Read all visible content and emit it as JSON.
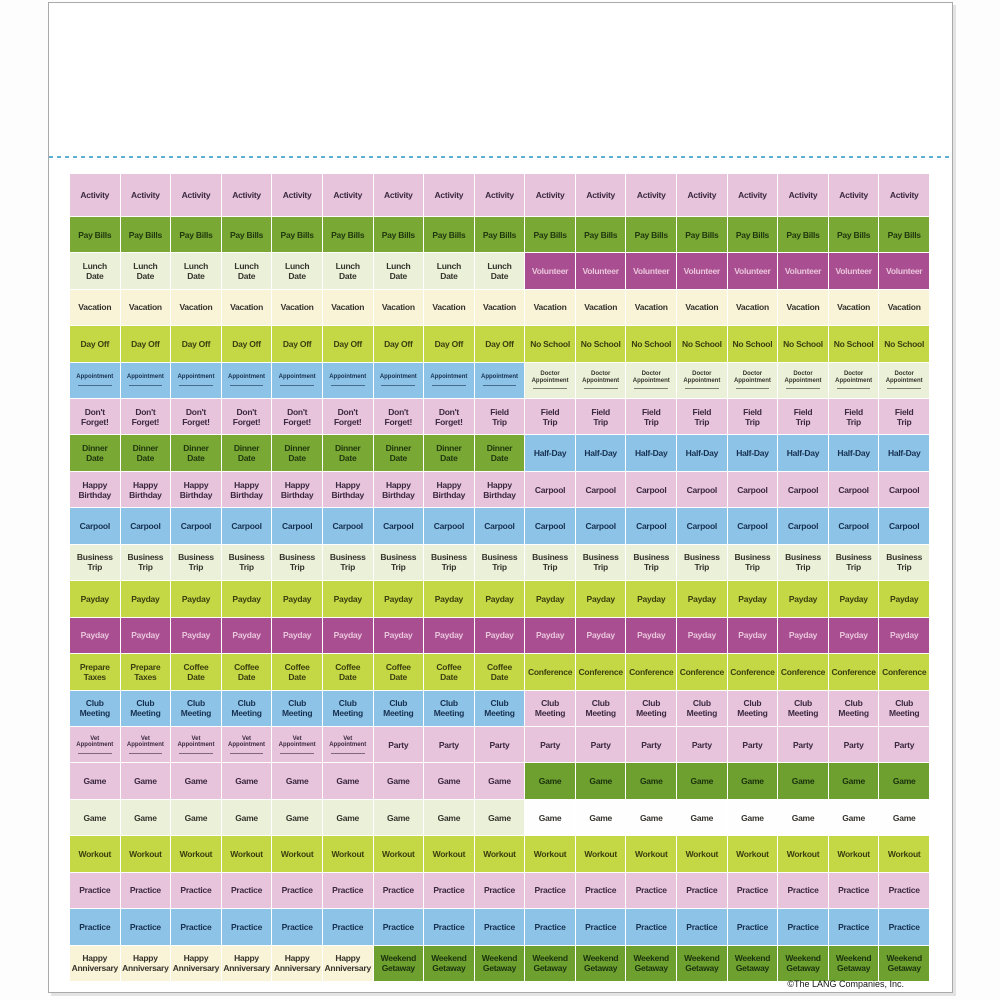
{
  "page": {
    "footer": "©The LANG Companies, Inc.",
    "perforation_color": "#5fafd6"
  },
  "palette": {
    "pink": {
      "bg": "#e7c3dc",
      "text": "#3a2940"
    },
    "green": {
      "bg": "#79a834",
      "text": "#20380e"
    },
    "dkgreen": {
      "bg": "#6da02e",
      "text": "#1b310e"
    },
    "palegreen": {
      "bg": "#ebf1d9",
      "text": "#35332c"
    },
    "cream": {
      "bg": "#f9f3d7",
      "text": "#35332c"
    },
    "chartreuse": {
      "bg": "#c4d845",
      "text": "#3a3f0e"
    },
    "blue": {
      "bg": "#8ec3e8",
      "text": "#16304f"
    },
    "magenta": {
      "bg": "#a94e90",
      "text": "#e9c6dc"
    },
    "white": {
      "bg": "#fefefe",
      "text": "#35332c"
    }
  },
  "sheet": {
    "columns": 17,
    "rows": [
      {
        "segments": [
          {
            "label": "Activity",
            "style": "pink",
            "count": 17
          }
        ]
      },
      {
        "segments": [
          {
            "label": "Pay Bills",
            "style": "green",
            "count": 17
          }
        ]
      },
      {
        "segments": [
          {
            "label": "Lunch\nDate",
            "style": "palegreen",
            "count": 9
          },
          {
            "label": "Volunteer",
            "style": "magenta",
            "count": 8
          }
        ]
      },
      {
        "segments": [
          {
            "label": "Vacation",
            "style": "cream",
            "count": 17
          }
        ]
      },
      {
        "segments": [
          {
            "label": "Day Off",
            "style": "chartreuse",
            "count": 9
          },
          {
            "label": "No School",
            "style": "chartreuse",
            "count": 8
          }
        ]
      },
      {
        "segments": [
          {
            "label": "Appointment",
            "style": "blue",
            "count": 9,
            "small": true,
            "lined": true
          },
          {
            "label": "Doctor\nAppointment",
            "style": "palegreen",
            "count": 8,
            "small": true,
            "lined": true
          }
        ]
      },
      {
        "segments": [
          {
            "label": "Don't\nForget!",
            "style": "pink",
            "count": 8
          },
          {
            "label": "Field\nTrip",
            "style": "pink",
            "count": 9
          }
        ]
      },
      {
        "segments": [
          {
            "label": "Dinner\nDate",
            "style": "green",
            "count": 9
          },
          {
            "label": "Half-Day",
            "style": "blue",
            "count": 8
          }
        ]
      },
      {
        "segments": [
          {
            "label": "Happy\nBirthday",
            "style": "pink",
            "count": 9
          },
          {
            "label": "Carpool",
            "style": "pink",
            "count": 8
          }
        ]
      },
      {
        "segments": [
          {
            "label": "Carpool",
            "style": "blue",
            "count": 17
          }
        ]
      },
      {
        "segments": [
          {
            "label": "Business\nTrip",
            "style": "palegreen",
            "count": 17
          }
        ]
      },
      {
        "segments": [
          {
            "label": "Payday",
            "style": "chartreuse",
            "count": 17
          }
        ]
      },
      {
        "segments": [
          {
            "label": "Payday",
            "style": "magenta",
            "count": 17
          }
        ]
      },
      {
        "segments": [
          {
            "label": "Prepare\nTaxes",
            "style": "chartreuse",
            "count": 2
          },
          {
            "label": "Coffee\nDate",
            "style": "chartreuse",
            "count": 7
          },
          {
            "label": "Conference",
            "style": "chartreuse",
            "count": 8
          }
        ]
      },
      {
        "segments": [
          {
            "label": "Club\nMeeting",
            "style": "blue",
            "count": 9
          },
          {
            "label": "Club\nMeeting",
            "style": "pink",
            "count": 8
          }
        ]
      },
      {
        "segments": [
          {
            "label": "Vet\nAppointment",
            "style": "pink",
            "count": 6,
            "small": true,
            "lined": true
          },
          {
            "label": "Party",
            "style": "pink",
            "count": 11
          }
        ]
      },
      {
        "segments": [
          {
            "label": "Game",
            "style": "pink",
            "count": 9
          },
          {
            "label": "Game",
            "style": "dkgreen",
            "count": 8
          }
        ]
      },
      {
        "segments": [
          {
            "label": "Game",
            "style": "palegreen",
            "count": 9
          },
          {
            "label": "Game",
            "style": "white",
            "count": 8
          }
        ]
      },
      {
        "segments": [
          {
            "label": "Workout",
            "style": "chartreuse",
            "count": 17
          }
        ]
      },
      {
        "segments": [
          {
            "label": "Practice",
            "style": "pink",
            "count": 17
          }
        ]
      },
      {
        "segments": [
          {
            "label": "Practice",
            "style": "blue",
            "count": 17
          }
        ]
      },
      {
        "segments": [
          {
            "label": "Happy\nAnniversary",
            "style": "cream",
            "count": 6
          },
          {
            "label": "Weekend\nGetaway",
            "style": "dkgreen",
            "count": 11
          }
        ]
      }
    ]
  }
}
